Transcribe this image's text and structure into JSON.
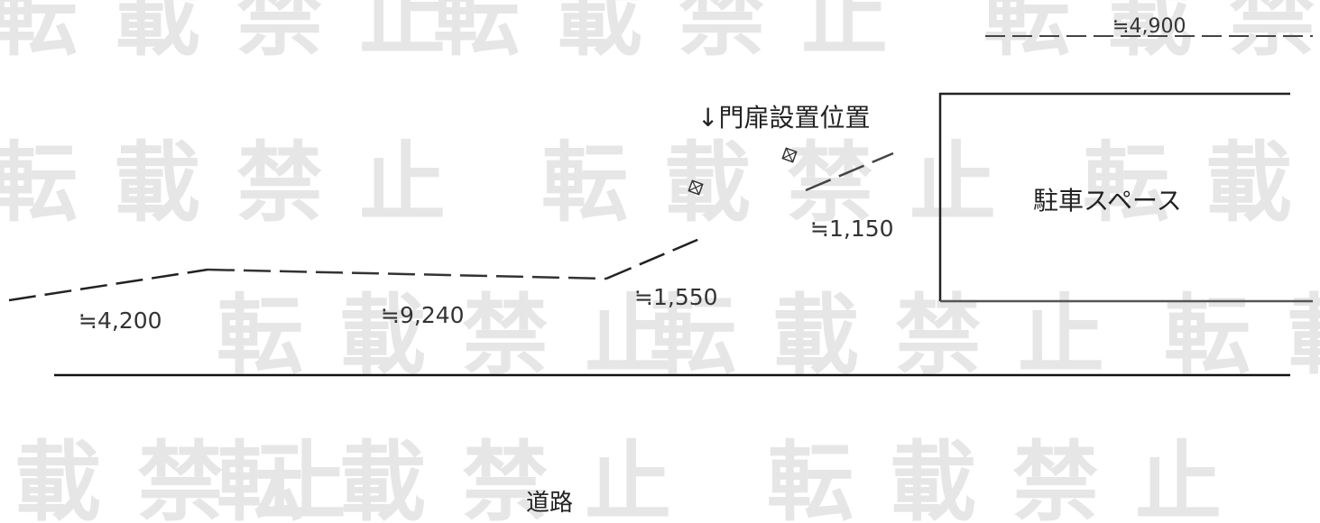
{
  "watermark": {
    "text": "転載禁止",
    "color": "#e4e4e4"
  },
  "dimensions": {
    "top_right": "≒4,900",
    "segment_1": "≒4,200",
    "segment_2": "≒9,240",
    "segment_3": "≒1,550",
    "segment_4": "≒1,150"
  },
  "labels": {
    "gate": "↓門扉設置位置",
    "parking": "駐車スペース",
    "road": "道路"
  },
  "colors": {
    "line": "#1a1a1a",
    "text": "#222222",
    "dim_text": "#333333"
  },
  "icons": {
    "gate_post": "gate-post-icon"
  }
}
